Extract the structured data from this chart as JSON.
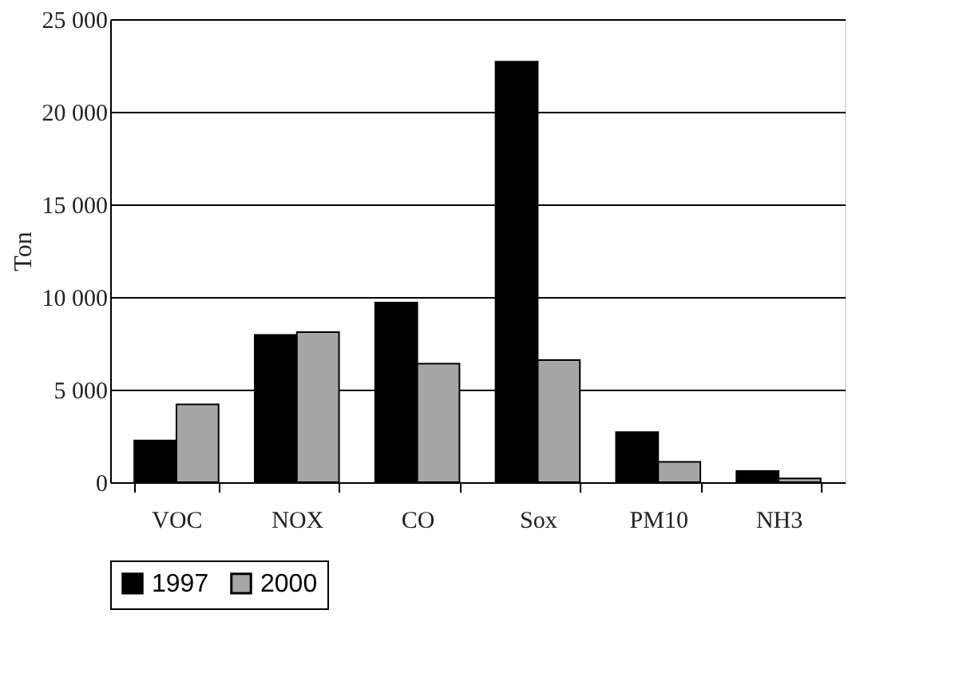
{
  "chart_data": {
    "type": "bar",
    "ylabel": "Ton",
    "categories": [
      "VOC",
      "NOX",
      "CO",
      "Sox",
      "PM10",
      "NH3"
    ],
    "series": [
      {
        "name": "1997",
        "color": "#000000",
        "values": [
          2250,
          7950,
          9700,
          22700,
          2700,
          600
        ]
      },
      {
        "name": "2000",
        "color": "#a6a6a6",
        "values": [
          4200,
          8100,
          6400,
          6600,
          1100,
          200
        ]
      }
    ],
    "ylim": [
      0,
      25000
    ],
    "yticks": [
      0,
      {
        "value": 5000,
        "label": "5 000"
      },
      {
        "value": 10000,
        "label": "10 000"
      },
      {
        "value": 15000,
        "label": "15 000"
      },
      {
        "value": 20000,
        "label": "20 000"
      },
      {
        "value": 25000,
        "label": "25 000"
      }
    ],
    "grid": "y",
    "legend": "bottom"
  }
}
